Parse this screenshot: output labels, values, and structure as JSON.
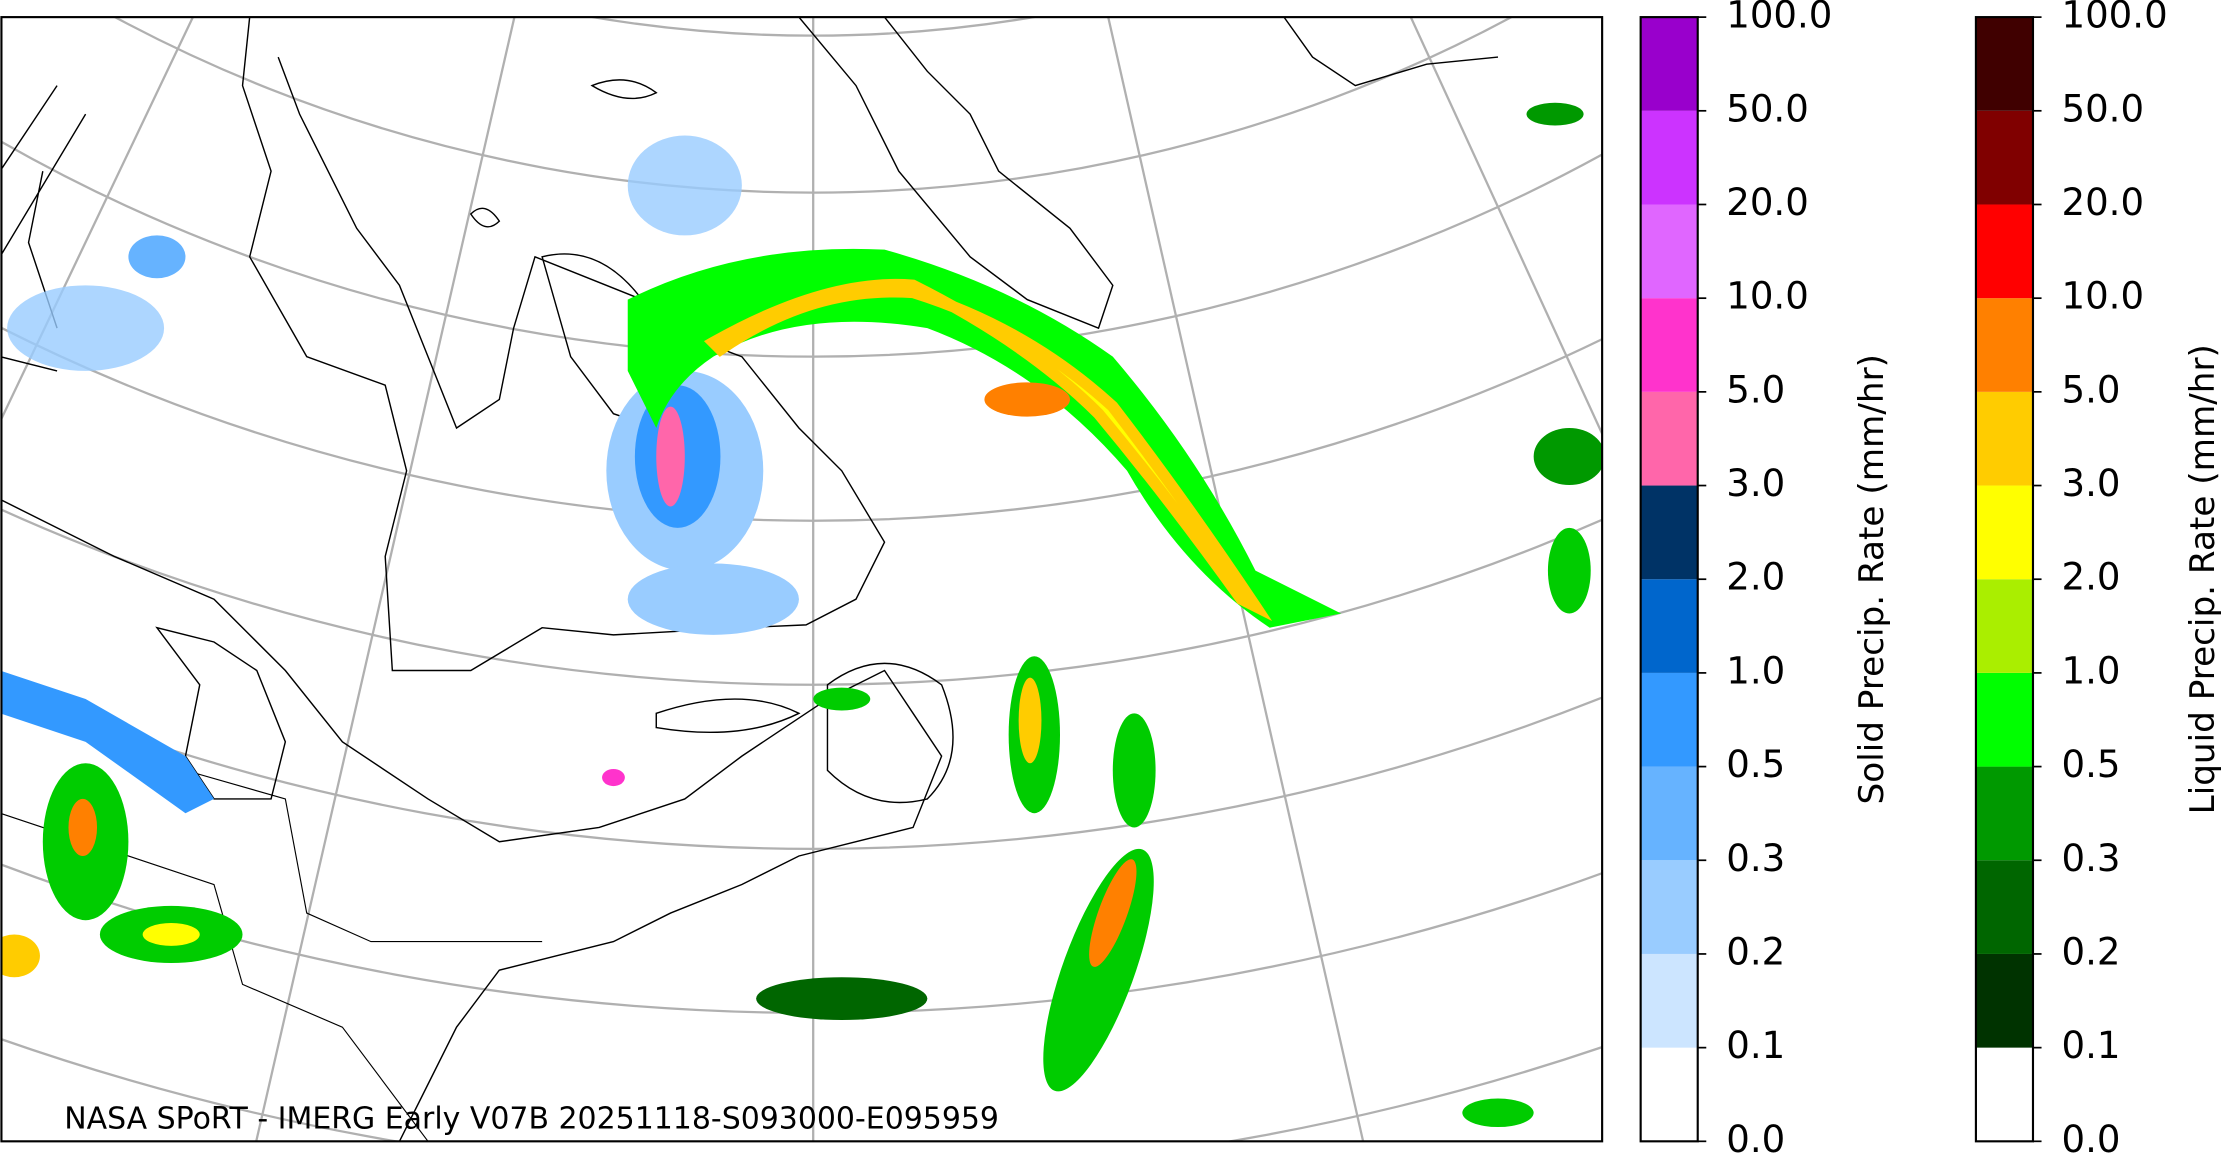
{
  "map": {
    "caption": "NASA SPoRT - IMERG Early V07B 20251118-S093000-E095959",
    "colorbars": [
      {
        "label": "Solid Precip. Rate (mm/hr)",
        "ticks": [
          {
            "value": 0,
            "label": "0.0"
          },
          {
            "value": 0.1,
            "label": "0.1"
          },
          {
            "value": 0.2,
            "label": "0.2"
          },
          {
            "value": 0.3,
            "label": "0.3"
          },
          {
            "value": 0.5,
            "label": "0.5"
          },
          {
            "value": 1,
            "label": "1.0"
          },
          {
            "value": 2,
            "label": "2.0"
          },
          {
            "value": 3,
            "label": "3.0"
          },
          {
            "value": 5,
            "label": "5.0"
          },
          {
            "value": 10,
            "label": "10.0"
          },
          {
            "value": 20,
            "label": "20.0"
          },
          {
            "value": 50,
            "label": "50.0"
          },
          {
            "value": 100,
            "label": "100.0"
          }
        ],
        "colors": [
          "#ffffff",
          "#cce5ff",
          "#99ccff",
          "#66b3ff",
          "#3399ff",
          "#0066cc",
          "#003366",
          "#ff66aa",
          "#ff33cc",
          "#e066ff",
          "#cc33ff",
          "#9900cc"
        ]
      },
      {
        "label": "Liquid Precip. Rate (mm/hr)",
        "ticks": [
          {
            "value": 0,
            "label": "0.0"
          },
          {
            "value": 0.1,
            "label": "0.1"
          },
          {
            "value": 0.2,
            "label": "0.2"
          },
          {
            "value": 0.3,
            "label": "0.3"
          },
          {
            "value": 0.5,
            "label": "0.5"
          },
          {
            "value": 1,
            "label": "1.0"
          },
          {
            "value": 2,
            "label": "2.0"
          },
          {
            "value": 3,
            "label": "3.0"
          },
          {
            "value": 5,
            "label": "5.0"
          },
          {
            "value": 10,
            "label": "10.0"
          },
          {
            "value": 20,
            "label": "20.0"
          },
          {
            "value": 50,
            "label": "50.0"
          },
          {
            "value": 100,
            "label": "100.0"
          }
        ],
        "colors": [
          "#ffffff",
          "#003300",
          "#006600",
          "#009900",
          "#00ff00",
          "#aaee00",
          "#ffff00",
          "#ffcc00",
          "#ff8000",
          "#ff0000",
          "#800000",
          "#400000"
        ]
      }
    ]
  }
}
